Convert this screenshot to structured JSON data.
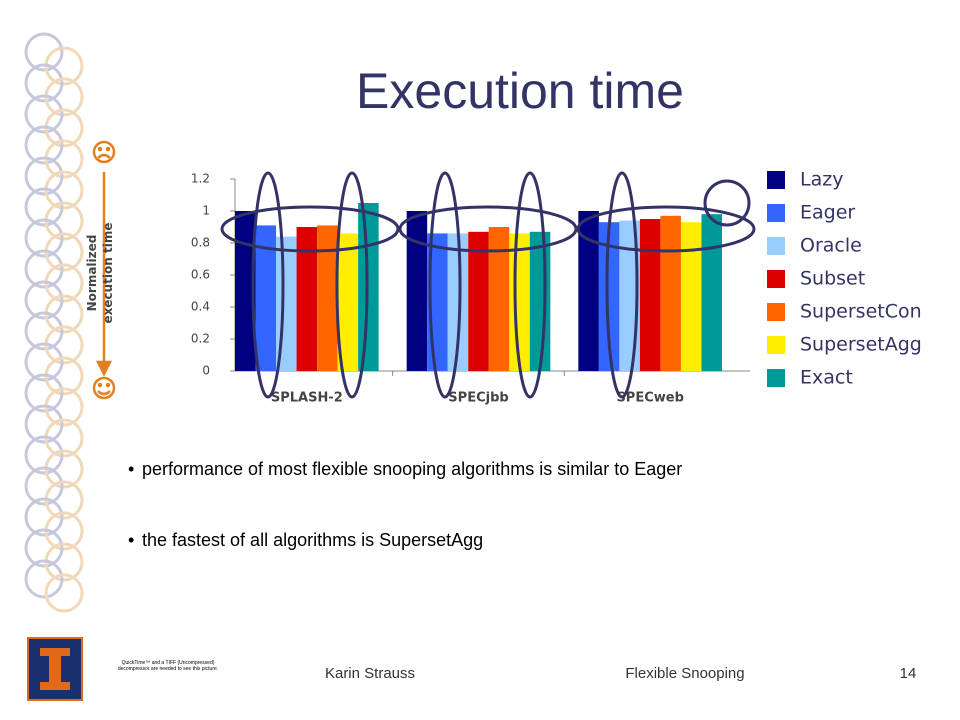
{
  "chart_data": {
    "type": "bar",
    "title": "Execution time",
    "ylabel": "Normalized execution time",
    "categories": [
      "SPLASH-2",
      "SPECjbb",
      "SPECweb"
    ],
    "series": [
      {
        "name": "Lazy",
        "color": "#000080",
        "values": [
          1.0,
          1.0,
          1.0
        ]
      },
      {
        "name": "Eager",
        "color": "#3366ff",
        "values": [
          0.91,
          0.86,
          0.93
        ]
      },
      {
        "name": "Oracle",
        "color": "#99ccff",
        "values": [
          0.84,
          0.86,
          0.94
        ]
      },
      {
        "name": "Subset",
        "color": "#dd0000",
        "values": [
          0.9,
          0.87,
          0.95
        ]
      },
      {
        "name": "SupersetCon",
        "color": "#ff6600",
        "values": [
          0.91,
          0.9,
          0.97
        ]
      },
      {
        "name": "SupersetAgg",
        "color": "#ffee00",
        "values": [
          0.86,
          0.86,
          0.93
        ]
      },
      {
        "name": "Exact",
        "color": "#009999",
        "values": [
          1.05,
          0.87,
          0.98
        ]
      }
    ],
    "ylim": [
      0,
      1.2
    ],
    "yticks": [
      0,
      0.2,
      0.4,
      0.6,
      0.8,
      1,
      1.2
    ],
    "grid": false,
    "legend": "right"
  },
  "bullets": [
    "performance of most flexible snooping algorithms is similar to Eager",
    "the fastest of all algorithms is SupersetAgg"
  ],
  "footer": {
    "author": "Karin Strauss",
    "talk": "Flexible Snooping",
    "page": "14",
    "placeholder": "QuickTime™ and a TIFF (Uncompressed) decompressor are needed to see this picture."
  }
}
